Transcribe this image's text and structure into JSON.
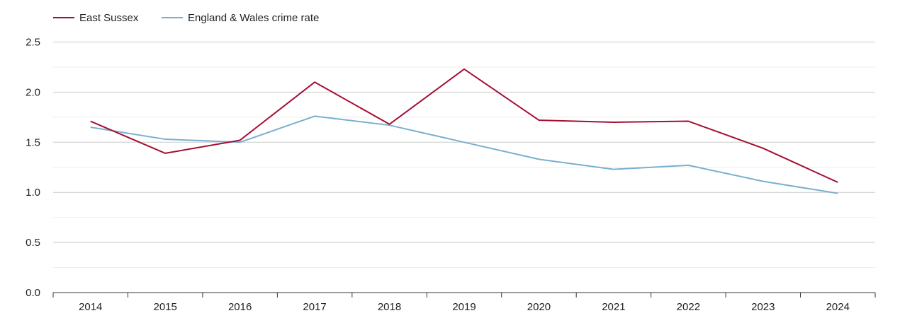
{
  "chart_data": {
    "type": "line",
    "title": "",
    "xlabel": "",
    "ylabel": "",
    "x": [
      "2014",
      "2015",
      "2016",
      "2017",
      "2018",
      "2019",
      "2020",
      "2021",
      "2022",
      "2023",
      "2024"
    ],
    "ylim": [
      0,
      2.5
    ],
    "yticks": [
      "0.0",
      "0.5",
      "1.0",
      "1.5",
      "2.0",
      "2.5"
    ],
    "grid": true,
    "legend_position": "top-left",
    "series": [
      {
        "name": "East Sussex",
        "color": "#a50f34",
        "values": [
          1.71,
          1.39,
          1.52,
          2.1,
          1.68,
          2.23,
          1.72,
          1.7,
          1.71,
          1.44,
          1.1
        ]
      },
      {
        "name": "England & Wales crime rate",
        "color": "#7aafcf",
        "values": [
          1.65,
          1.53,
          1.5,
          1.76,
          1.67,
          1.5,
          1.33,
          1.23,
          1.27,
          1.11,
          0.99
        ]
      }
    ]
  }
}
